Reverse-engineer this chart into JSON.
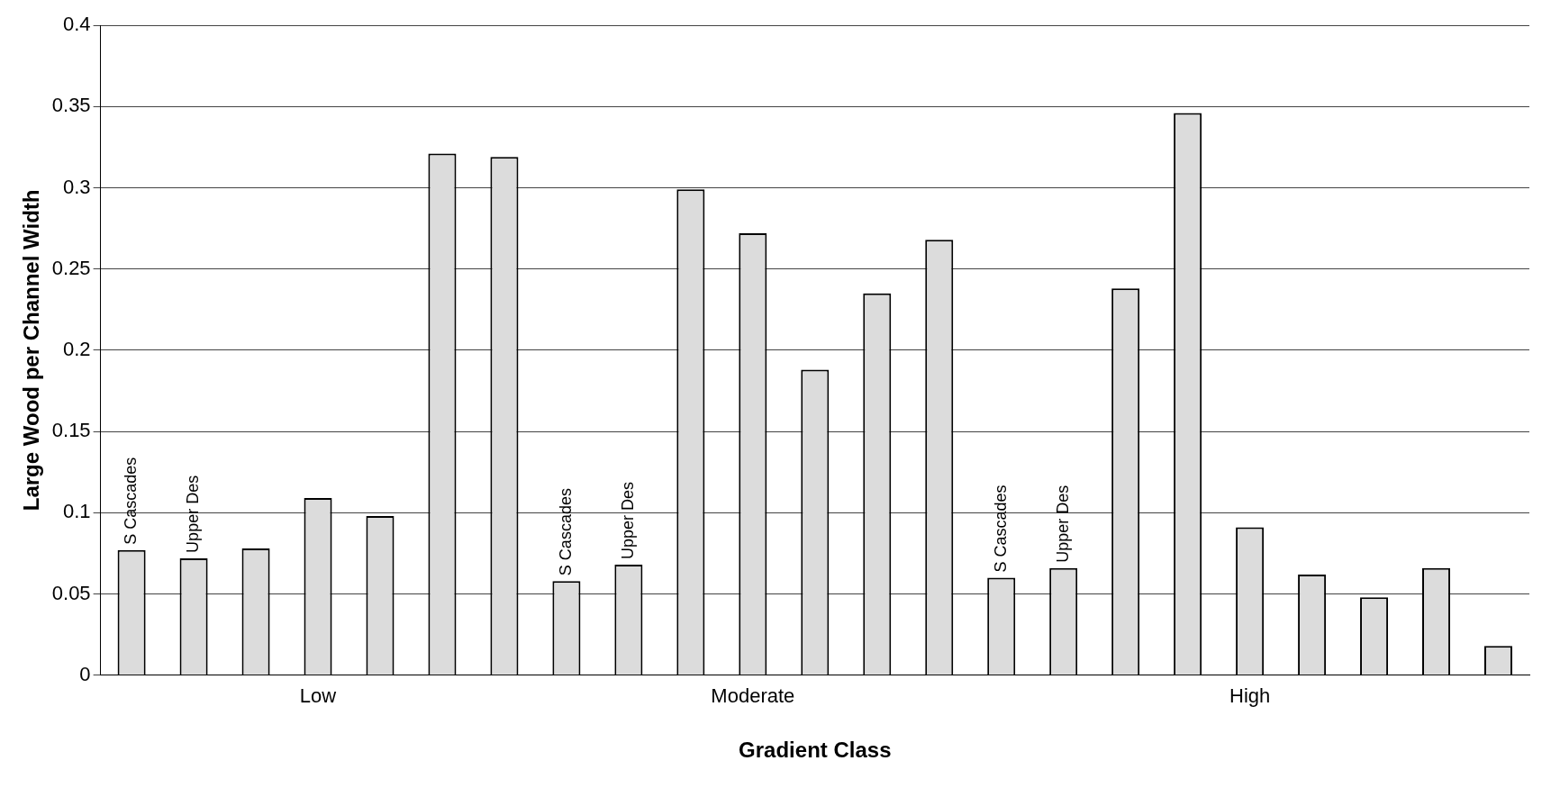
{
  "chart_data": {
    "type": "bar",
    "xlabel": "Gradient Class",
    "ylabel": "Large Wood per Channel Width",
    "categories": [
      null,
      null,
      null,
      "Low",
      null,
      null,
      null,
      null,
      null,
      null,
      "Moderate",
      null,
      null,
      null,
      null,
      null,
      null,
      null,
      "High",
      null,
      null,
      null,
      null
    ],
    "values": [
      0.077,
      0.072,
      0.078,
      0.109,
      0.098,
      0.321,
      0.319,
      0.058,
      0.068,
      0.299,
      0.272,
      0.188,
      0.235,
      0.268,
      0.06,
      0.066,
      0.238,
      0.346,
      0.091,
      0.062,
      0.048,
      0.066,
      0.018
    ],
    "value_labels": [
      "S Cascades",
      "Upper Des",
      null,
      null,
      null,
      null,
      null,
      "S Cascades",
      "Upper Des",
      null,
      null,
      null,
      null,
      null,
      "S Cascades",
      "Upper Des",
      null,
      null,
      null,
      null,
      null,
      null,
      null
    ],
    "color": "#dcdcdc",
    "ylim": [
      0,
      0.4
    ],
    "yticks": [
      0,
      0.05,
      0.1,
      0.15,
      0.2,
      0.25,
      0.3,
      0.35,
      0.4
    ],
    "grid": "y",
    "legend": false
  }
}
